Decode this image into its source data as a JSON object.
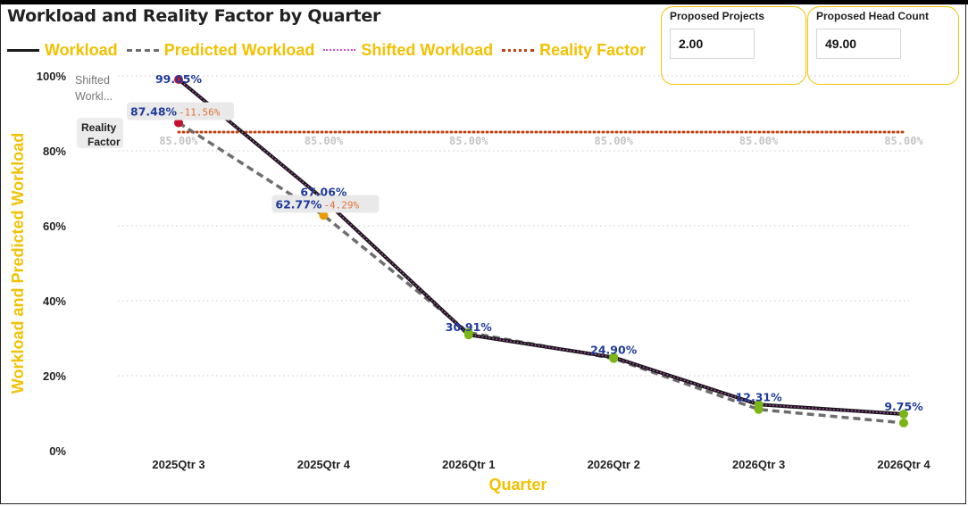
{
  "title": "Workload and Reality Factor by Quarter",
  "legend": [
    {
      "label": "Workload",
      "style": "solid",
      "color": "#1a1a1a"
    },
    {
      "label": "Predicted Workload",
      "style": "dashed",
      "color": "#6e6e6e"
    },
    {
      "label": "Shifted Workload",
      "style": "dotted",
      "color": "#d04fd0"
    },
    {
      "label": "Reality Factor",
      "style": "dotted",
      "color": "#c0400f"
    }
  ],
  "cards": [
    {
      "title": "Proposed Projects",
      "value": "2.00"
    },
    {
      "title": "Proposed Head Count",
      "value": "49.00"
    }
  ],
  "chart_data": {
    "type": "line",
    "xlabel": "Quarter",
    "ylabel": "Workload and Predicted Workload",
    "categories": [
      "2025Qtr 3",
      "2025Qtr 4",
      "2026Qtr 1",
      "2026Qtr 2",
      "2026Qtr 3",
      "2026Qtr 4"
    ],
    "ylim": [
      0,
      100
    ],
    "yticks": [
      "0%",
      "20%",
      "40%",
      "60%",
      "80%",
      "100%"
    ],
    "grid": true,
    "legend_position": "top-left",
    "series": [
      {
        "name": "Workload",
        "values": [
          99.05,
          67.06,
          30.91,
          24.9,
          12.31,
          9.75
        ],
        "labels": [
          "99.05%",
          "67.06%",
          "30.91%",
          "24.90%",
          "12.31%",
          "9.75%"
        ],
        "color": "#1a1a1a"
      },
      {
        "name": "Predicted Workload",
        "values": [
          87.48,
          62.77,
          31.5,
          24.6,
          11.0,
          7.4
        ],
        "labels": [
          "87.48%",
          "62.77%",
          null,
          null,
          null,
          null
        ],
        "color": "#6e6e6e",
        "marker_colors": [
          "#c8102e",
          "#e69b00",
          "#7cb518",
          "#7cb518",
          "#7cb518",
          "#7cb518"
        ]
      },
      {
        "name": "Shifted Workload",
        "values": [
          99.05,
          67.06,
          30.91,
          24.9,
          12.31,
          9.75
        ],
        "color": "#d04fd0"
      },
      {
        "name": "Reality Factor",
        "values": [
          85,
          85,
          85,
          85,
          85,
          85
        ],
        "labels": [
          "85.00%",
          "85.00%",
          "85.00%",
          "85.00%",
          "85.00%",
          "85.00%"
        ],
        "color": "#c0400f"
      }
    ],
    "variance_labels": [
      "-11.56%",
      "-4.29%"
    ],
    "series_end_labels": {
      "shifted": "Shifted Workl...",
      "reality": "Reality Factor"
    }
  }
}
